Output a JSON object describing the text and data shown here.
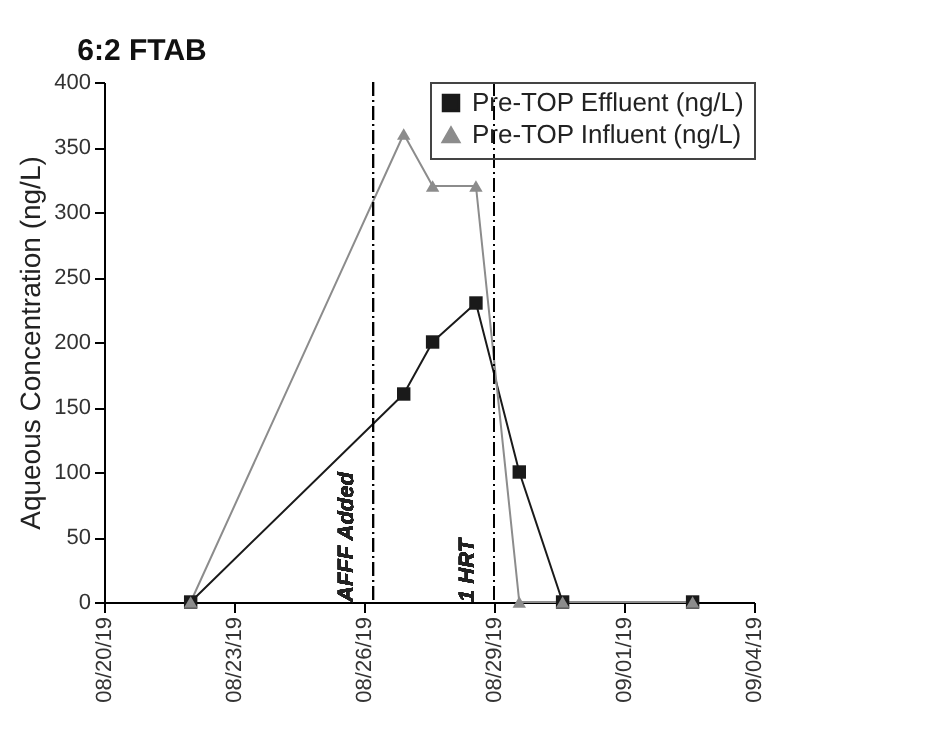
{
  "chart_data": {
    "type": "line",
    "title": "6:2 FTAB",
    "ylabel": "Aqueous Concentration (ng/L)",
    "xlim": [
      "--08-20",
      "--09-04"
    ],
    "xticks": [
      {
        "value": "--08-20",
        "label": "08/20/19"
      },
      {
        "value": "--08-23",
        "label": "08/23/19"
      },
      {
        "value": "--08-26",
        "label": "08/26/19"
      },
      {
        "value": "--08-29",
        "label": "08/29/19"
      },
      {
        "value": "--09-01",
        "label": "09/01/19"
      },
      {
        "value": "--09-04",
        "label": "09/04/19"
      }
    ],
    "ylim": [
      0,
      400
    ],
    "yticks": [
      0,
      50,
      100,
      150,
      200,
      250,
      300,
      350,
      400
    ],
    "x": [
      "--08-22T00:00",
      "--08-26T22:00",
      "--08-27T14:00",
      "--08-28T14:00",
      "--08-29T14:00",
      "--08-30T14:00",
      "--09-02T14:00"
    ],
    "series": [
      {
        "name": "Pre-TOP Effluent (ng/L)",
        "color": "#1a1a1a",
        "marker": "square",
        "values": [
          0,
          160,
          200,
          230,
          100,
          0,
          0
        ]
      },
      {
        "name": "Pre-TOP Influent (ng/L)",
        "color": "#8c8c8c",
        "marker": "triangle",
        "values": [
          0,
          360,
          320,
          320,
          0,
          0,
          0
        ]
      }
    ],
    "ref_lines": [
      {
        "axis": "x",
        "value": "--08-26T05:00",
        "label": "AFFF Added",
        "line_style": "dashdot",
        "color": "#000000"
      },
      {
        "axis": "x",
        "value": "--08-29T00:00",
        "label": "1 HRT",
        "line_style": "dashdot",
        "color": "#000000"
      }
    ],
    "grid": false,
    "legend": "top right",
    "line_style": "solid"
  }
}
